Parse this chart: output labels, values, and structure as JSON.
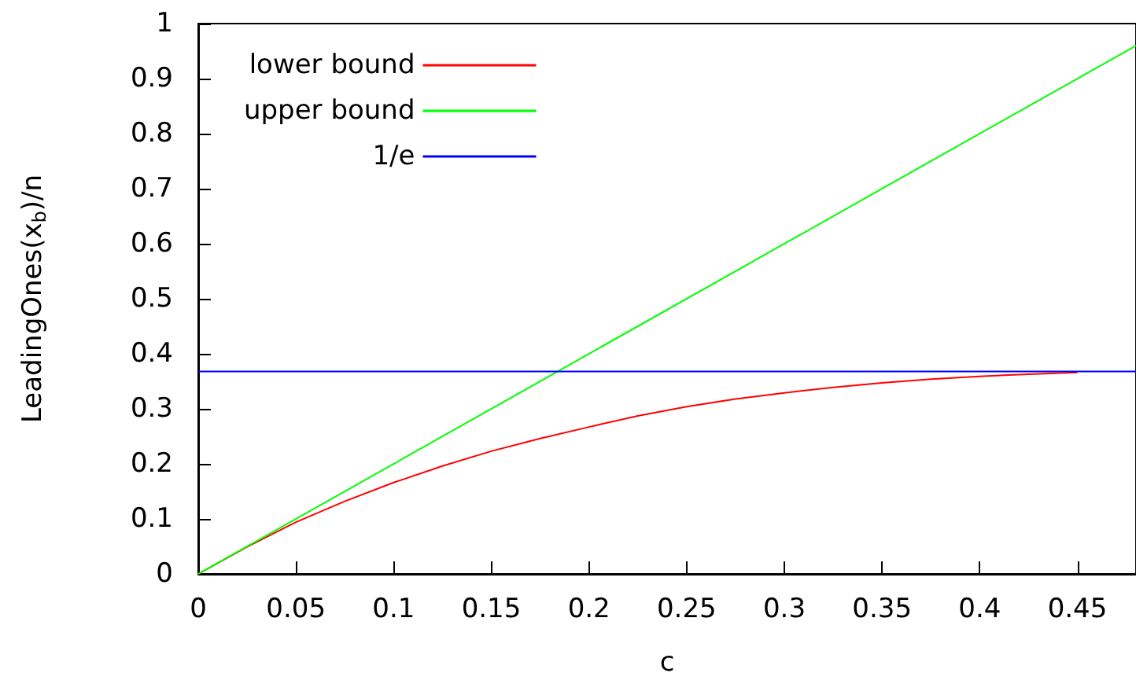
{
  "chart_data": {
    "type": "line",
    "xlabel": "c",
    "ylabel": "LeadingOnes(x$_{b}$)/n",
    "xlim": [
      0,
      0.48
    ],
    "xticks": [
      0,
      0.05,
      0.1,
      0.15,
      0.2,
      0.25,
      0.3,
      0.35,
      0.4,
      0.45
    ],
    "ylim": [
      0,
      1
    ],
    "yticks": [
      0,
      0.1,
      0.2,
      0.3,
      0.4,
      0.5,
      0.6,
      0.7,
      0.8,
      0.9,
      1
    ],
    "legend": "top left",
    "grid": false,
    "marker": "none",
    "line_style": "solid",
    "series": [
      {
        "name": "lower bound",
        "color": "#ff0000",
        "x": [
          0,
          0.025,
          0.05,
          0.075,
          0.1,
          0.125,
          0.15,
          0.175,
          0.2,
          0.225,
          0.25,
          0.275,
          0.3,
          0.325,
          0.35,
          0.375,
          0.4,
          0.425,
          0.45
        ],
        "values": [
          0,
          0.049,
          0.094,
          0.132,
          0.166,
          0.196,
          0.223,
          0.246,
          0.267,
          0.287,
          0.304,
          0.318,
          0.329,
          0.339,
          0.347,
          0.354,
          0.359,
          0.363,
          0.366
        ]
      },
      {
        "name": "upper bound",
        "color": "#00ff00",
        "x": [
          0,
          0.48
        ],
        "values": [
          0,
          0.96
        ]
      },
      {
        "name": "1/e",
        "color": "#0000ff",
        "x": [
          0,
          0.48
        ],
        "values": [
          0.368,
          0.368
        ]
      }
    ]
  }
}
